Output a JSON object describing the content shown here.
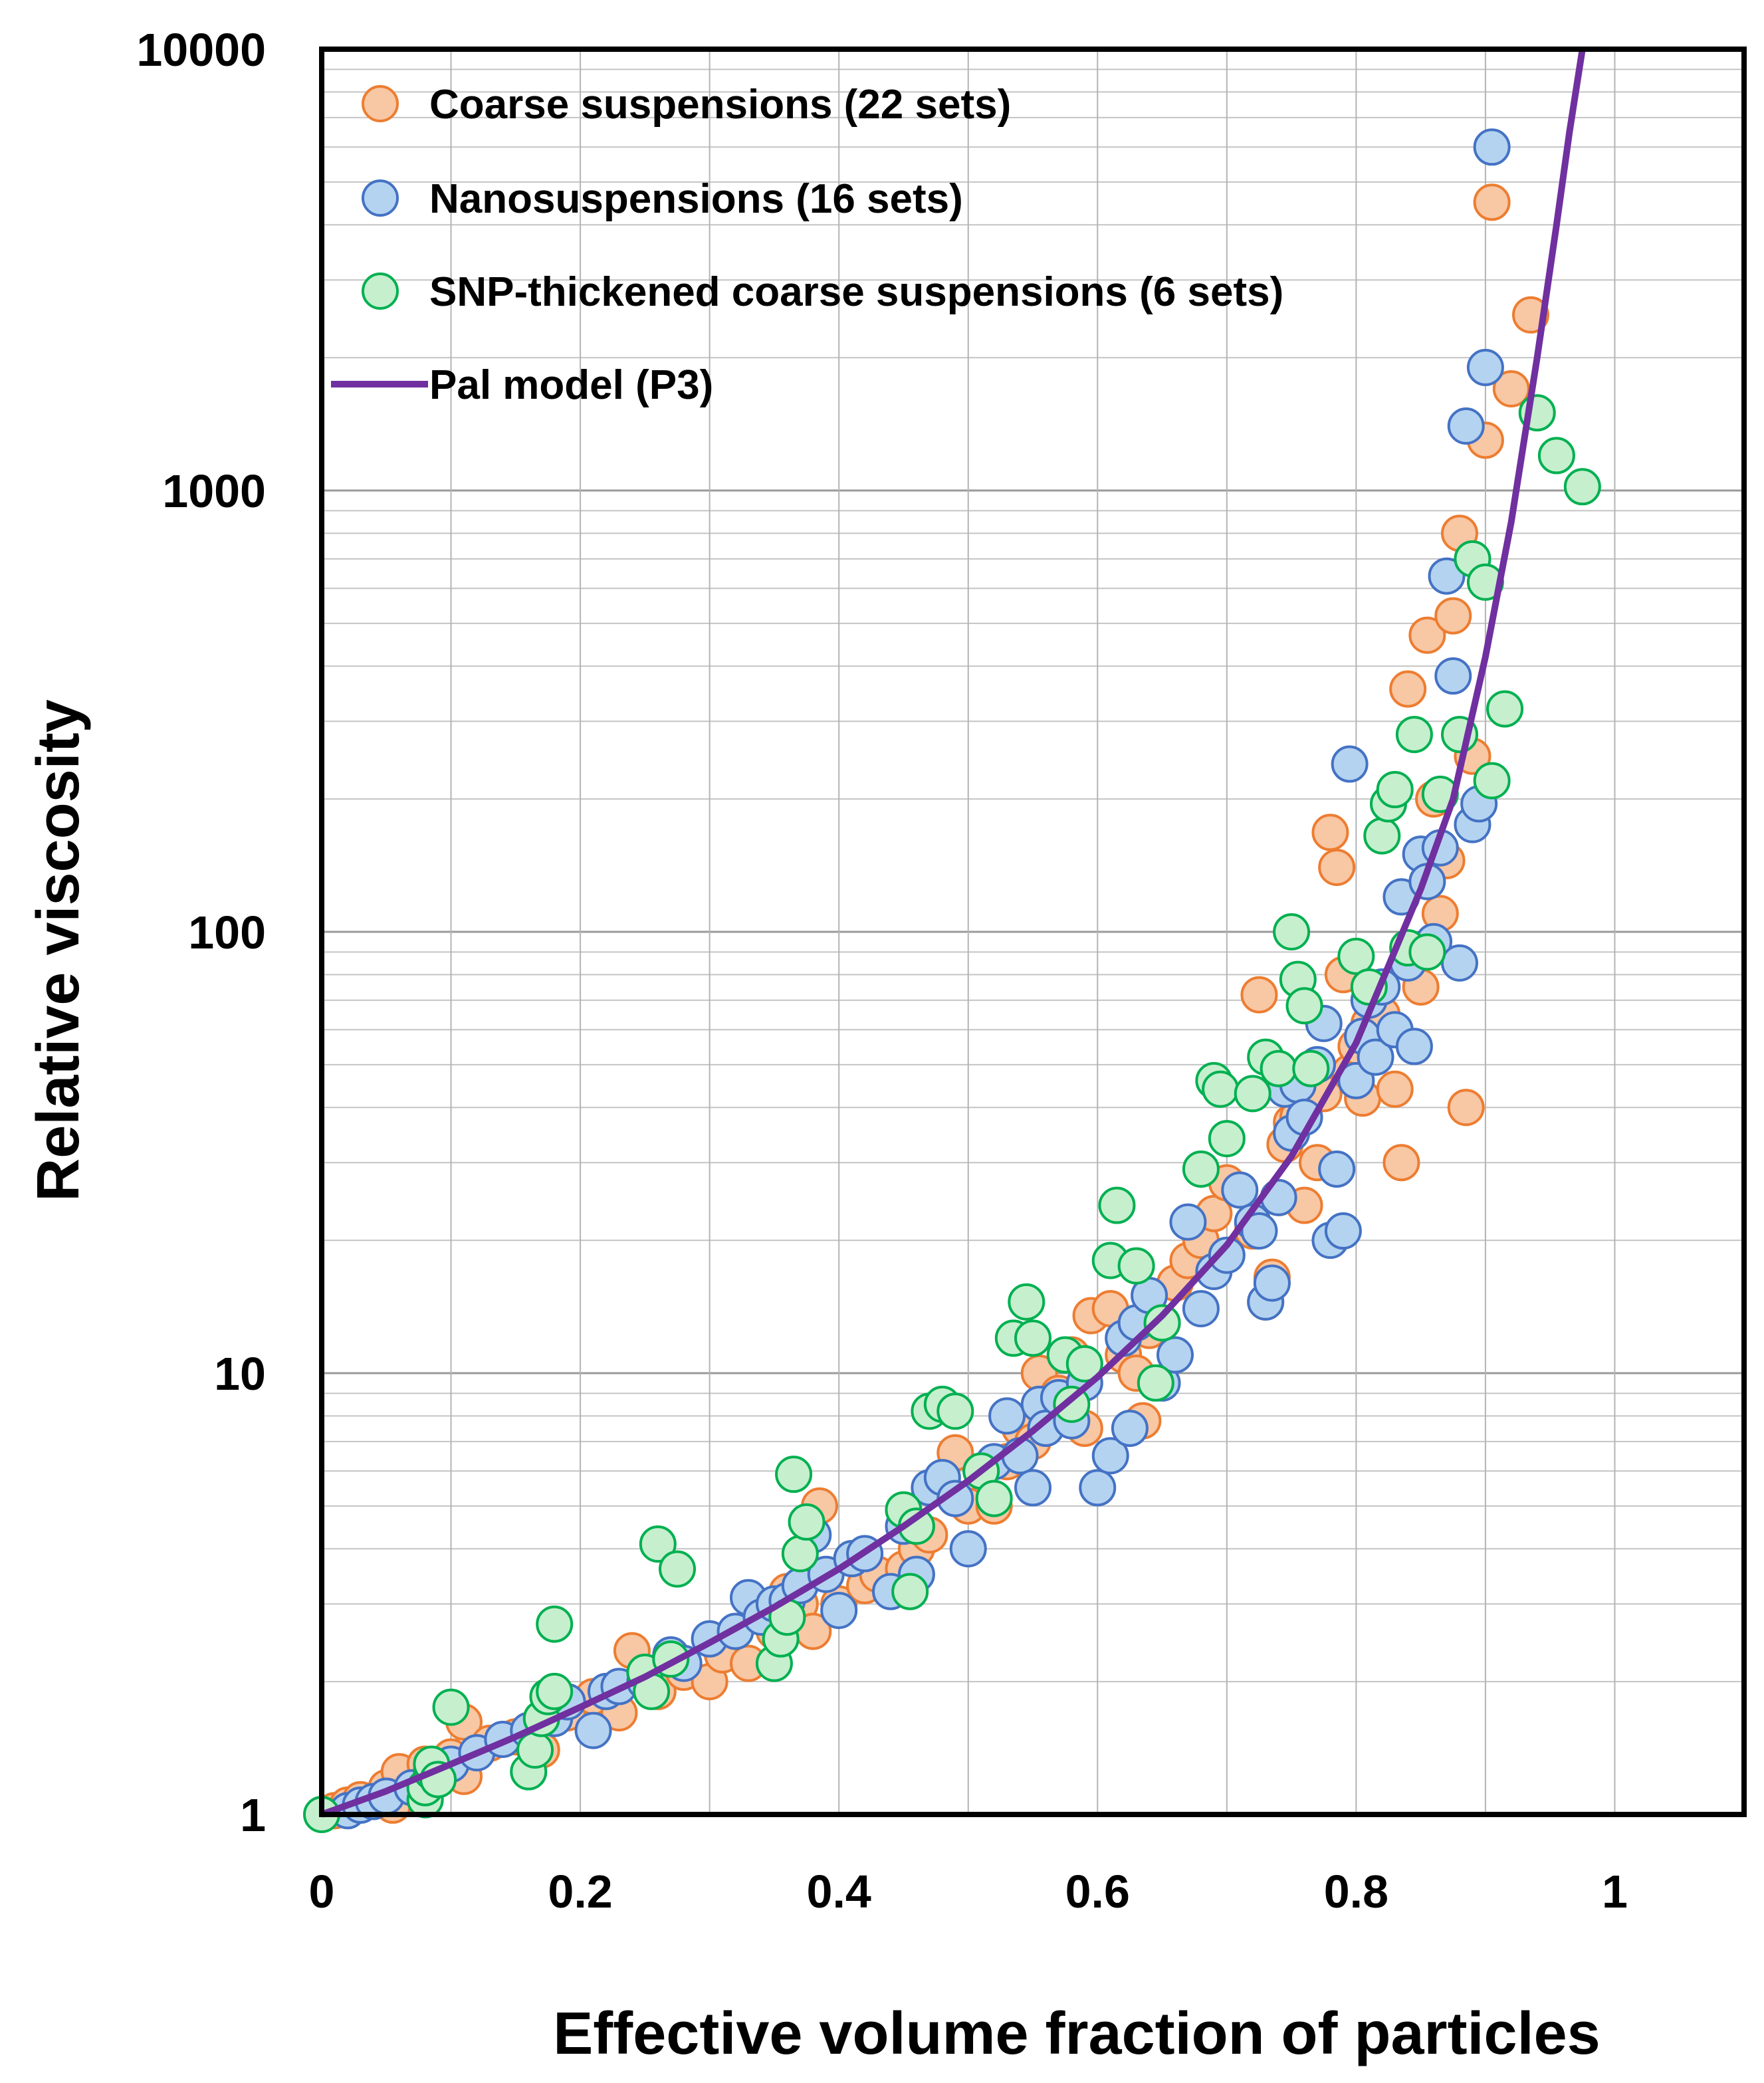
{
  "chart_data": {
    "type": "scatter",
    "xlabel": "Effective volume fraction of particles",
    "ylabel": "Relative viscosity",
    "xlim": [
      0,
      1.1
    ],
    "ylim": [
      1,
      10000
    ],
    "yscale": "log",
    "grid": true,
    "legend_position": "top-left",
    "x_ticks": [
      "0",
      "0.2",
      "0.4",
      "0.6",
      "0.8",
      "1"
    ],
    "y_ticks": [
      "1",
      "10",
      "100",
      "1000",
      "10000"
    ],
    "series": [
      {
        "name": "Coarse suspensions (22 sets)",
        "kind": "scatter",
        "fill": "#f8c7a4",
        "stroke": "#ed7d31",
        "points": [
          [
            0.01,
            1.02
          ],
          [
            0.02,
            1.05
          ],
          [
            0.03,
            1.08
          ],
          [
            0.05,
            1.15
          ],
          [
            0.055,
            1.05
          ],
          [
            0.06,
            1.25
          ],
          [
            0.08,
            1.3
          ],
          [
            0.1,
            1.35
          ],
          [
            0.11,
            1.22
          ],
          [
            0.11,
            1.62
          ],
          [
            0.13,
            1.45
          ],
          [
            0.15,
            1.5
          ],
          [
            0.17,
            1.4
          ],
          [
            0.19,
            1.7
          ],
          [
            0.21,
            1.85
          ],
          [
            0.23,
            1.7
          ],
          [
            0.24,
            2.35
          ],
          [
            0.26,
            1.9
          ],
          [
            0.28,
            2.1
          ],
          [
            0.3,
            2.0
          ],
          [
            0.31,
            2.3
          ],
          [
            0.33,
            2.2
          ],
          [
            0.35,
            2.6
          ],
          [
            0.36,
            3.2
          ],
          [
            0.37,
            3.0
          ],
          [
            0.38,
            2.6
          ],
          [
            0.385,
            5.0
          ],
          [
            0.4,
            3.0
          ],
          [
            0.42,
            3.3
          ],
          [
            0.43,
            3.5
          ],
          [
            0.45,
            3.6
          ],
          [
            0.46,
            4.0
          ],
          [
            0.47,
            4.3
          ],
          [
            0.48,
            5.5
          ],
          [
            0.49,
            6.6
          ],
          [
            0.5,
            5.0
          ],
          [
            0.52,
            5.0
          ],
          [
            0.53,
            6.3
          ],
          [
            0.54,
            7.5
          ],
          [
            0.55,
            7.0
          ],
          [
            0.555,
            10.0
          ],
          [
            0.57,
            9.0
          ],
          [
            0.58,
            11.0
          ],
          [
            0.59,
            7.5
          ],
          [
            0.595,
            13.5
          ],
          [
            0.61,
            14.0
          ],
          [
            0.62,
            11.0
          ],
          [
            0.63,
            10.0
          ],
          [
            0.635,
            7.8
          ],
          [
            0.64,
            12.5
          ],
          [
            0.65,
            13.0
          ],
          [
            0.66,
            16.0
          ],
          [
            0.67,
            18.0
          ],
          [
            0.68,
            20.0
          ],
          [
            0.69,
            23.0
          ],
          [
            0.7,
            27.0
          ],
          [
            0.72,
            21.0
          ],
          [
            0.725,
            72.0
          ],
          [
            0.73,
            14.5
          ],
          [
            0.735,
            16.5
          ],
          [
            0.74,
            25.0
          ],
          [
            0.745,
            33.0
          ],
          [
            0.75,
            37.0
          ],
          [
            0.755,
            38.0
          ],
          [
            0.76,
            24.0
          ],
          [
            0.77,
            30.0
          ],
          [
            0.775,
            43.0
          ],
          [
            0.78,
            168.0
          ],
          [
            0.785,
            140.0
          ],
          [
            0.79,
            80.0
          ],
          [
            0.795,
            48.0
          ],
          [
            0.8,
            55.0
          ],
          [
            0.805,
            42.0
          ],
          [
            0.81,
            62.0
          ],
          [
            0.815,
            58.0
          ],
          [
            0.82,
            65.0
          ],
          [
            0.83,
            44.0
          ],
          [
            0.835,
            30.0
          ],
          [
            0.84,
            355.0
          ],
          [
            0.85,
            75.0
          ],
          [
            0.855,
            470.0
          ],
          [
            0.86,
            200.0
          ],
          [
            0.865,
            110.0
          ],
          [
            0.87,
            145.0
          ],
          [
            0.875,
            520.0
          ],
          [
            0.88,
            800.0
          ],
          [
            0.885,
            40.0
          ],
          [
            0.89,
            250.0
          ],
          [
            0.9,
            1300.0
          ],
          [
            0.905,
            4500.0
          ],
          [
            0.92,
            1700.0
          ],
          [
            0.935,
            2500.0
          ]
        ]
      },
      {
        "name": "Nanosuspensions (16 sets)",
        "kind": "scatter",
        "fill": "#b4d3f0",
        "stroke": "#4472c4",
        "points": [
          [
            0.02,
            1.02
          ],
          [
            0.03,
            1.05
          ],
          [
            0.04,
            1.07
          ],
          [
            0.05,
            1.1
          ],
          [
            0.07,
            1.15
          ],
          [
            0.09,
            1.25
          ],
          [
            0.1,
            1.3
          ],
          [
            0.12,
            1.38
          ],
          [
            0.14,
            1.48
          ],
          [
            0.16,
            1.55
          ],
          [
            0.18,
            1.65
          ],
          [
            0.19,
            1.8
          ],
          [
            0.21,
            1.55
          ],
          [
            0.22,
            1.9
          ],
          [
            0.23,
            1.95
          ],
          [
            0.25,
            2.0
          ],
          [
            0.27,
            2.3
          ],
          [
            0.28,
            2.2
          ],
          [
            0.3,
            2.5
          ],
          [
            0.32,
            2.6
          ],
          [
            0.33,
            3.1
          ],
          [
            0.34,
            2.8
          ],
          [
            0.35,
            3.0
          ],
          [
            0.36,
            3.05
          ],
          [
            0.37,
            3.3
          ],
          [
            0.38,
            4.3
          ],
          [
            0.39,
            3.5
          ],
          [
            0.4,
            2.9
          ],
          [
            0.41,
            3.8
          ],
          [
            0.42,
            3.9
          ],
          [
            0.44,
            3.2
          ],
          [
            0.45,
            4.5
          ],
          [
            0.46,
            3.5
          ],
          [
            0.47,
            5.5
          ],
          [
            0.48,
            5.8
          ],
          [
            0.49,
            5.2
          ],
          [
            0.5,
            4.0
          ],
          [
            0.51,
            6.0
          ],
          [
            0.52,
            6.3
          ],
          [
            0.53,
            8.0
          ],
          [
            0.54,
            6.5
          ],
          [
            0.55,
            5.5
          ],
          [
            0.555,
            8.5
          ],
          [
            0.56,
            7.5
          ],
          [
            0.57,
            8.8
          ],
          [
            0.58,
            7.8
          ],
          [
            0.59,
            9.5
          ],
          [
            0.6,
            5.5
          ],
          [
            0.61,
            6.5
          ],
          [
            0.62,
            12.0
          ],
          [
            0.625,
            7.5
          ],
          [
            0.63,
            13.0
          ],
          [
            0.64,
            15.0
          ],
          [
            0.65,
            9.5
          ],
          [
            0.66,
            11.0
          ],
          [
            0.67,
            22.0
          ],
          [
            0.68,
            14.0
          ],
          [
            0.69,
            17.0
          ],
          [
            0.7,
            18.5
          ],
          [
            0.71,
            26.0
          ],
          [
            0.72,
            22.0
          ],
          [
            0.725,
            21.0
          ],
          [
            0.73,
            14.5
          ],
          [
            0.735,
            16.0
          ],
          [
            0.74,
            25.0
          ],
          [
            0.745,
            44.0
          ],
          [
            0.75,
            35.0
          ],
          [
            0.755,
            45.0
          ],
          [
            0.76,
            38.0
          ],
          [
            0.77,
            50.0
          ],
          [
            0.775,
            62.0
          ],
          [
            0.78,
            20.0
          ],
          [
            0.785,
            29.0
          ],
          [
            0.79,
            21.0
          ],
          [
            0.795,
            240.0
          ],
          [
            0.8,
            46.0
          ],
          [
            0.805,
            58.0
          ],
          [
            0.81,
            70.0
          ],
          [
            0.815,
            52.0
          ],
          [
            0.82,
            75.0
          ],
          [
            0.83,
            60.0
          ],
          [
            0.835,
            120.0
          ],
          [
            0.84,
            85.0
          ],
          [
            0.845,
            55.0
          ],
          [
            0.85,
            150.0
          ],
          [
            0.855,
            130.0
          ],
          [
            0.86,
            95.0
          ],
          [
            0.865,
            155.0
          ],
          [
            0.87,
            640.0
          ],
          [
            0.875,
            380.0
          ],
          [
            0.88,
            85.0
          ],
          [
            0.885,
            1400.0
          ],
          [
            0.89,
            175.0
          ],
          [
            0.895,
            195.0
          ],
          [
            0.9,
            1900.0
          ],
          [
            0.905,
            6000.0
          ]
        ]
      },
      {
        "name": "SNP-thickened coarse suspensions (6 sets)",
        "kind": "scatter",
        "fill": "#c6efce",
        "stroke": "#00b050",
        "points": [
          [
            0.0,
            1.0
          ],
          [
            0.08,
            1.08
          ],
          [
            0.08,
            1.15
          ],
          [
            0.085,
            1.25
          ],
          [
            0.085,
            1.3
          ],
          [
            0.09,
            1.2
          ],
          [
            0.1,
            1.75
          ],
          [
            0.16,
            1.25
          ],
          [
            0.165,
            1.4
          ],
          [
            0.17,
            1.65
          ],
          [
            0.175,
            1.85
          ],
          [
            0.18,
            1.9
          ],
          [
            0.18,
            2.7
          ],
          [
            0.25,
            2.1
          ],
          [
            0.255,
            1.9
          ],
          [
            0.26,
            4.1
          ],
          [
            0.27,
            2.25
          ],
          [
            0.275,
            3.6
          ],
          [
            0.35,
            2.2
          ],
          [
            0.355,
            2.5
          ],
          [
            0.36,
            2.8
          ],
          [
            0.365,
            5.9
          ],
          [
            0.37,
            3.9
          ],
          [
            0.375,
            4.6
          ],
          [
            0.45,
            4.9
          ],
          [
            0.455,
            3.2
          ],
          [
            0.46,
            4.5
          ],
          [
            0.47,
            8.2
          ],
          [
            0.48,
            8.5
          ],
          [
            0.49,
            8.2
          ],
          [
            0.51,
            6.0
          ],
          [
            0.52,
            5.2
          ],
          [
            0.535,
            12.0
          ],
          [
            0.545,
            14.5
          ],
          [
            0.55,
            12.0
          ],
          [
            0.575,
            11.0
          ],
          [
            0.58,
            8.5
          ],
          [
            0.59,
            10.5
          ],
          [
            0.61,
            18.0
          ],
          [
            0.615,
            24.0
          ],
          [
            0.63,
            17.5
          ],
          [
            0.645,
            9.5
          ],
          [
            0.65,
            13.0
          ],
          [
            0.68,
            29.0
          ],
          [
            0.69,
            46.0
          ],
          [
            0.695,
            44.0
          ],
          [
            0.7,
            34.0
          ],
          [
            0.72,
            43.0
          ],
          [
            0.73,
            52.0
          ],
          [
            0.74,
            49.0
          ],
          [
            0.75,
            100.0
          ],
          [
            0.755,
            78.0
          ],
          [
            0.76,
            68.0
          ],
          [
            0.765,
            49.0
          ],
          [
            0.8,
            88.0
          ],
          [
            0.81,
            75.0
          ],
          [
            0.82,
            165.0
          ],
          [
            0.825,
            195.0
          ],
          [
            0.83,
            210.0
          ],
          [
            0.84,
            92.0
          ],
          [
            0.845,
            280.0
          ],
          [
            0.855,
            90.0
          ],
          [
            0.865,
            205.0
          ],
          [
            0.88,
            280.0
          ],
          [
            0.89,
            700.0
          ],
          [
            0.9,
            620.0
          ],
          [
            0.905,
            220.0
          ],
          [
            0.915,
            320.0
          ],
          [
            0.94,
            1500.0
          ],
          [
            0.955,
            1200.0
          ],
          [
            0.975,
            1020.0
          ]
        ]
      },
      {
        "name": "Pal model (P3)",
        "kind": "line",
        "stroke": "#7030a0",
        "points": [
          [
            0.0,
            1.0
          ],
          [
            0.05,
            1.13
          ],
          [
            0.1,
            1.3
          ],
          [
            0.15,
            1.5
          ],
          [
            0.2,
            1.75
          ],
          [
            0.25,
            2.05
          ],
          [
            0.3,
            2.45
          ],
          [
            0.35,
            2.95
          ],
          [
            0.4,
            3.6
          ],
          [
            0.45,
            4.5
          ],
          [
            0.5,
            5.7
          ],
          [
            0.55,
            7.4
          ],
          [
            0.6,
            9.8
          ],
          [
            0.65,
            13.5
          ],
          [
            0.7,
            19.5
          ],
          [
            0.75,
            31.0
          ],
          [
            0.8,
            56.0
          ],
          [
            0.85,
            125.0
          ],
          [
            0.875,
            200.0
          ],
          [
            0.9,
            420.0
          ],
          [
            0.92,
            850.0
          ],
          [
            0.94,
            2000.0
          ],
          [
            0.955,
            4000.0
          ],
          [
            0.965,
            6500.0
          ],
          [
            0.975,
            10000.0
          ]
        ]
      }
    ]
  }
}
